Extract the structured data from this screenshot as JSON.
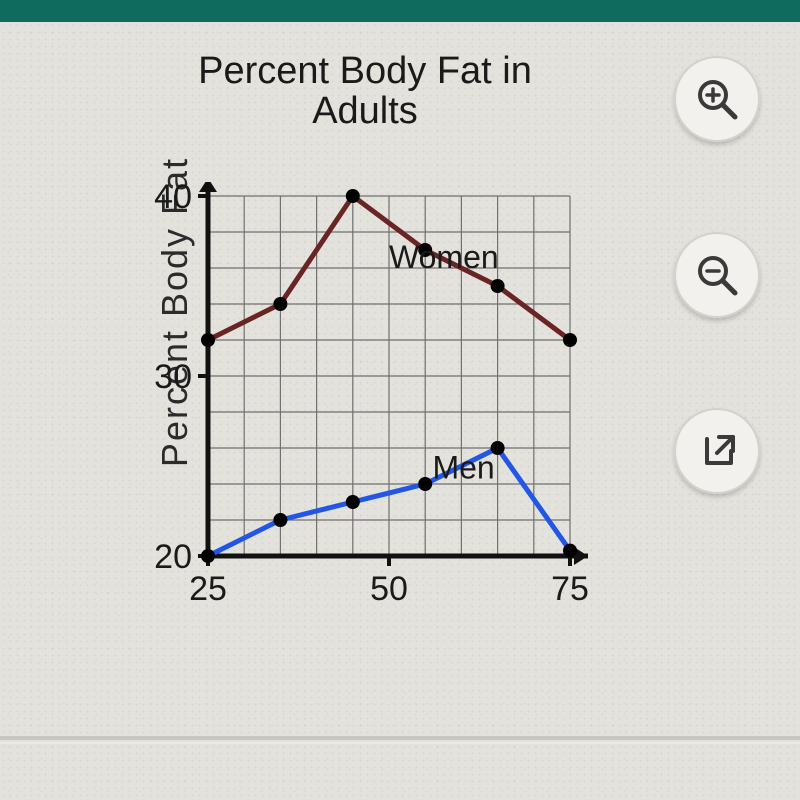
{
  "title_line1": "Percent Body Fat in",
  "title_line2": "Adults",
  "ylabel": "Percent Body Fat",
  "chart": {
    "type": "line",
    "background": "#e4e2dc",
    "grid_color": "#707070",
    "grid_width": 1.2,
    "axis_color": "#111111",
    "axis_width": 5,
    "xlim": [
      25,
      75
    ],
    "ylim": [
      20,
      40
    ],
    "xticks": [
      25,
      50,
      75
    ],
    "yticks": [
      20,
      30,
      40
    ],
    "tick_fontsize": 34,
    "tick_color": "#1a1a1a",
    "x_grid_step": 5,
    "y_grid_step": 2,
    "series": [
      {
        "name": "Women",
        "label": "Women",
        "label_pos": {
          "x": 50,
          "y": 36
        },
        "color": "#6a2424",
        "line_width": 5,
        "marker_color": "#000000",
        "marker_radius": 7,
        "points": [
          {
            "x": 25,
            "y": 32
          },
          {
            "x": 35,
            "y": 34
          },
          {
            "x": 45,
            "y": 40
          },
          {
            "x": 55,
            "y": 37
          },
          {
            "x": 65,
            "y": 35
          },
          {
            "x": 75,
            "y": 32
          }
        ]
      },
      {
        "name": "Men",
        "label": "Men",
        "label_pos": {
          "x": 56,
          "y": 24.3
        },
        "color": "#2257e6",
        "line_width": 5,
        "marker_color": "#000000",
        "marker_radius": 7,
        "points": [
          {
            "x": 25,
            "y": 20
          },
          {
            "x": 35,
            "y": 22
          },
          {
            "x": 45,
            "y": 23
          },
          {
            "x": 55,
            "y": 24
          },
          {
            "x": 65,
            "y": 26
          },
          {
            "x": 75,
            "y": 20.3
          }
        ]
      }
    ],
    "series_label_fontsize": 32,
    "series_label_color": "#1a1a1a"
  },
  "buttons": {
    "zoom_in": "zoom-in-icon",
    "zoom_out": "zoom-out-icon",
    "open": "open-external-icon"
  },
  "colors": {
    "topbar": "#0f6b5e",
    "panel_bg": "#e4e2dc",
    "btn_bg": "#f2f1ee",
    "btn_border": "#d3d1c9",
    "icon": "#3a3a3a"
  }
}
